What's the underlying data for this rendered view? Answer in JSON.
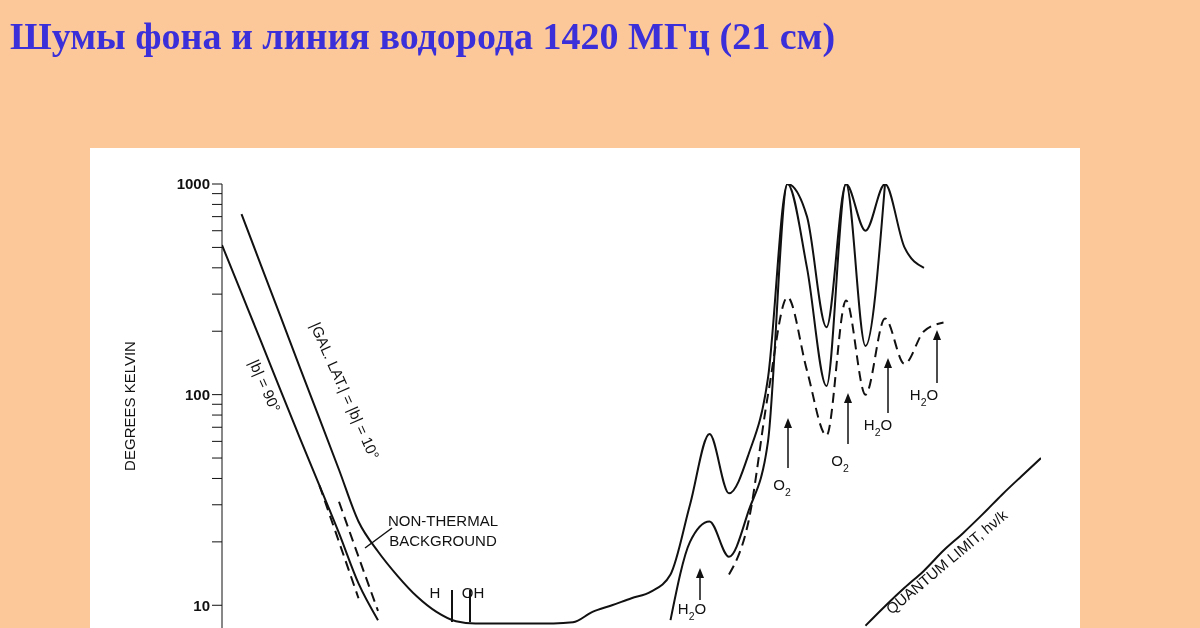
{
  "chart_data": {
    "type": "line",
    "title": "Шумы фона и линия водорода 1420 МГц (21 см)",
    "ylabel": "DEGREES KELVIN",
    "categories": [
      null,
      null,
      null,
      null,
      null,
      null,
      null,
      null,
      null,
      null,
      null,
      null,
      null,
      null,
      null,
      null,
      null,
      null,
      null,
      null,
      null,
      null,
      null,
      null,
      null,
      null,
      null,
      null,
      null,
      null,
      null,
      null,
      null,
      null,
      null,
      null,
      null,
      null,
      null,
      null,
      null,
      null,
      null
    ],
    "log": true,
    "ylim": [
      7.8,
      1000
    ],
    "yticks": [
      10,
      {
        "value": 20,
        "label": null
      },
      {
        "value": 30,
        "label": null
      },
      {
        "value": 40,
        "label": null
      },
      {
        "value": 50,
        "label": null
      },
      {
        "value": 60,
        "label": null
      },
      {
        "value": 70,
        "label": null
      },
      {
        "value": 80,
        "label": null
      },
      {
        "value": 90,
        "label": null
      },
      100,
      {
        "value": 200,
        "label": null
      },
      {
        "value": 300,
        "label": null
      },
      {
        "value": 400,
        "label": null
      },
      {
        "value": 500,
        "label": null
      },
      {
        "value": 600,
        "label": null
      },
      {
        "value": 700,
        "label": null
      },
      {
        "value": 800,
        "label": null
      },
      {
        "value": 900,
        "label": null
      },
      1000
    ],
    "marker": "none",
    "series": [
      {
        "name": "|GAL. LAT.| = |b| = 10°",
        "color": "#111111",
        "line_style": "solid",
        "values": [
          null,
          720,
          411,
          235,
          134,
          77,
          44,
          25,
          18,
          13.8,
          11,
          9.3,
          8.4,
          8.2,
          8.2,
          8.2,
          8.2,
          8.2,
          8.3,
          9.3,
          10,
          10.8,
          11.6,
          14,
          30,
          65,
          34,
          52,
          120,
          1000,
          700,
          209,
          1000,
          600,
          1000,
          500,
          400,
          null,
          null,
          null,
          null,
          null,
          null
        ]
      },
      {
        "name": "|b| = 90°",
        "color": "#111111",
        "line_style": "solid",
        "values": [
          513,
          303,
          179,
          105,
          62,
          37,
          22,
          12.7,
          8.5,
          null,
          null,
          null,
          null,
          null,
          null,
          null,
          null,
          null,
          null,
          null,
          null,
          null,
          null,
          null,
          null,
          null,
          null,
          null,
          null,
          null,
          null,
          null,
          null,
          null,
          null,
          null,
          null,
          null,
          null,
          null,
          null,
          null,
          null
        ]
      },
      {
        "color": "#111111",
        "line_style": "solid",
        "values": [
          null,
          null,
          null,
          null,
          null,
          null,
          null,
          null,
          null,
          null,
          null,
          null,
          null,
          null,
          null,
          null,
          null,
          null,
          null,
          null,
          null,
          null,
          null,
          8.5,
          20,
          25,
          17,
          28,
          60,
          1000,
          400,
          110,
          1000,
          170,
          1000,
          null,
          null,
          null,
          null,
          null,
          null,
          null,
          null
        ]
      },
      {
        "color": "#111111",
        "line_style": "dashed",
        "values": [
          null,
          null,
          null,
          null,
          null,
          null,
          31,
          17,
          9.4,
          null,
          null,
          null,
          null,
          null,
          null,
          null,
          null,
          null,
          null,
          null,
          null,
          null,
          null,
          null,
          null,
          null,
          null,
          null,
          null,
          null,
          null,
          null,
          null,
          null,
          null,
          null,
          null,
          null,
          null,
          null,
          null,
          null,
          null
        ]
      },
      {
        "color": "#111111",
        "line_style": "dashed",
        "values": [
          null,
          null,
          null,
          null,
          null,
          37,
          20,
          10.8,
          null,
          null,
          null,
          null,
          null,
          null,
          null,
          null,
          null,
          null,
          null,
          null,
          null,
          null,
          null,
          null,
          null,
          null,
          null,
          null,
          null,
          null,
          null,
          null,
          null,
          null,
          null,
          null,
          null,
          null,
          null,
          null,
          null,
          null,
          null
        ]
      },
      {
        "color": "#111111",
        "line_style": "dashed",
        "values": [
          null,
          null,
          null,
          null,
          null,
          null,
          null,
          null,
          null,
          null,
          null,
          null,
          null,
          null,
          null,
          null,
          null,
          null,
          null,
          null,
          null,
          null,
          null,
          null,
          null,
          null,
          14,
          25,
          100,
          290,
          130,
          64,
          280,
          100,
          230,
          140,
          200,
          220,
          null,
          null,
          null,
          null,
          null
        ]
      },
      {
        "color": "#111111",
        "line_style": "solid",
        "values": [
          null,
          null,
          null,
          null,
          null,
          null,
          null,
          null,
          null,
          null,
          null,
          null,
          null,
          null,
          null,
          null,
          null,
          null,
          null,
          null,
          null,
          null,
          null,
          null,
          null,
          null,
          null,
          null,
          null,
          null,
          null,
          null,
          null,
          8,
          9.9,
          12.1,
          14.6,
          18.2,
          22,
          27,
          33.5,
          41,
          50
        ]
      }
    ],
    "annotations": [
      "NON-THERMAL BACKGROUND",
      "H",
      "OH",
      "H$_{2}$O",
      "O$_{2}$",
      "O$_{2}$",
      "H$_{2}$O",
      "H$_{2}$O",
      "QUANTUM LIMIT, hν/k"
    ]
  }
}
